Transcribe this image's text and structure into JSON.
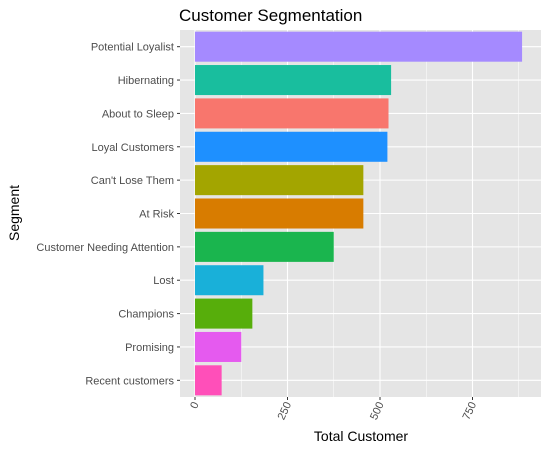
{
  "chart_data": {
    "type": "bar",
    "orientation": "horizontal",
    "title": "Customer Segmentation",
    "xlabel": "Total Customer",
    "ylabel": "Segment",
    "xlim": [
      0,
      900
    ],
    "xticks": [
      0,
      250,
      500,
      750
    ],
    "xtick_labels": [
      "0",
      "250",
      "500",
      "750"
    ],
    "grid": true,
    "legend": "none",
    "categories": [
      "Potential Loyalist",
      "Hibernating",
      "About to Sleep",
      "Loyal Customers",
      "Can't Lose Them",
      "At Risk",
      "Customer Needing Attention",
      "Lost",
      "Champions",
      "Promising",
      "Recent customers"
    ],
    "values": [
      884,
      530,
      523,
      520,
      455,
      455,
      375,
      185,
      155,
      125,
      72
    ],
    "colors": [
      "#A58AFF",
      "#19BE9E",
      "#F8766D",
      "#1E90FF",
      "#A3A500",
      "#D87C00",
      "#1AB54E",
      "#19B0D9",
      "#57AE0B",
      "#E55AEF",
      "#FF4FB9"
    ],
    "panel_background": "#E5E5E5",
    "grid_color": "#FFFFFF"
  }
}
